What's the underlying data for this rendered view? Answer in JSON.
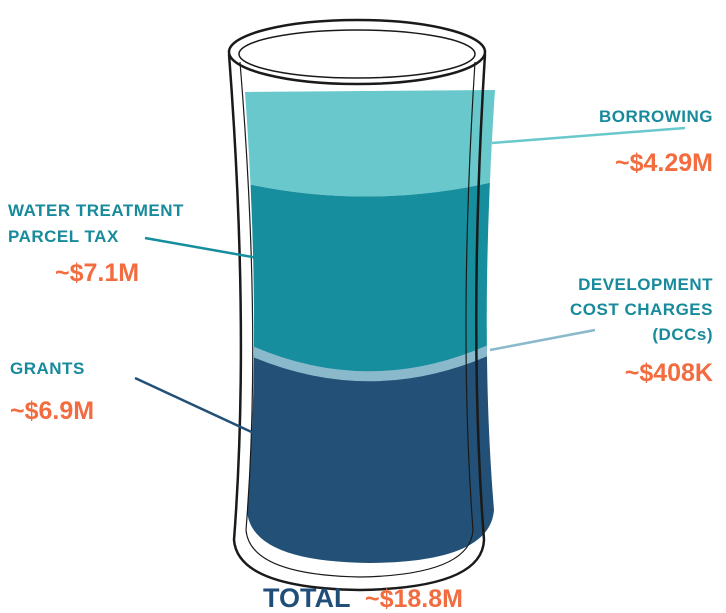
{
  "segments": [
    {
      "label": [
        "BORROWING"
      ],
      "value": "~$4.29M"
    },
    {
      "label": [
        "WATER TREATMENT",
        "PARCEL TAX"
      ],
      "value": "~$7.1M"
    },
    {
      "label": [
        "DEVELOPMENT",
        "COST CHARGES",
        "(DCCs)"
      ],
      "value": "~$408K"
    },
    {
      "label": [
        "GRANTS"
      ],
      "value": "~$6.9M"
    }
  ],
  "total": {
    "label": "TOTAL",
    "value": "~$18.8M"
  }
}
